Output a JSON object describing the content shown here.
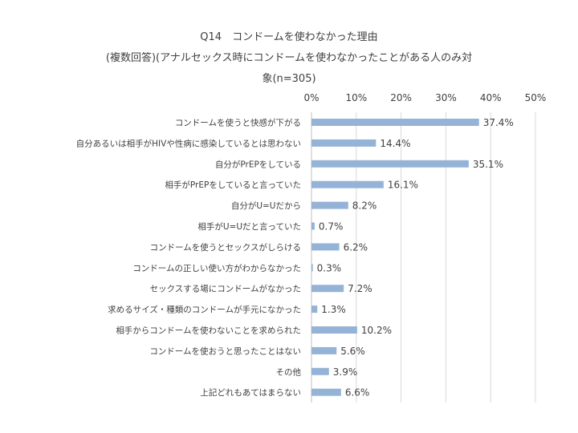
{
  "chart_data": {
    "type": "bar",
    "orientation": "horizontal",
    "title_lines": [
      "Q14　コンドームを使わなかった理由",
      "(複数回答)(アナルセックス時にコンドームを使わなかったことがある人のみ対",
      "象(n=305)"
    ],
    "xlim": [
      0,
      50
    ],
    "x_ticks": [
      "0%",
      "10%",
      "20%",
      "30%",
      "40%",
      "50%"
    ],
    "x_axis_position": "top",
    "grid": true,
    "bar_color": "#95b3d7",
    "categories": [
      "コンドームを使うと快感が下がる",
      "自分あるいは相手がHIVや性病に感染しているとは思わない",
      "自分がPrEPをしている",
      "相手がPrEPをしていると言っていた",
      "自分がU=Uだから",
      "相手がU=Uだと言っていた",
      "コンドームを使うとセックスがしらける",
      "コンドームの正しい使い方がわからなかった",
      "セックスする場にコンドームがなかった",
      "求めるサイズ・種類のコンドームが手元になかった",
      "相手からコンドームを使わないことを求められた",
      "コンドームを使おうと思ったことはない",
      "その他",
      "上記どれもあてはまらない"
    ],
    "values": [
      37.4,
      14.4,
      35.1,
      16.1,
      8.2,
      0.7,
      6.2,
      0.3,
      7.2,
      1.3,
      10.2,
      5.6,
      3.9,
      6.6
    ],
    "value_labels": [
      "37.4%",
      "14.4%",
      "35.1%",
      "16.1%",
      "8.2%",
      "0.7%",
      "6.2%",
      "0.3%",
      "7.2%",
      "1.3%",
      "10.2%",
      "5.6%",
      "3.9%",
      "6.6%"
    ]
  }
}
